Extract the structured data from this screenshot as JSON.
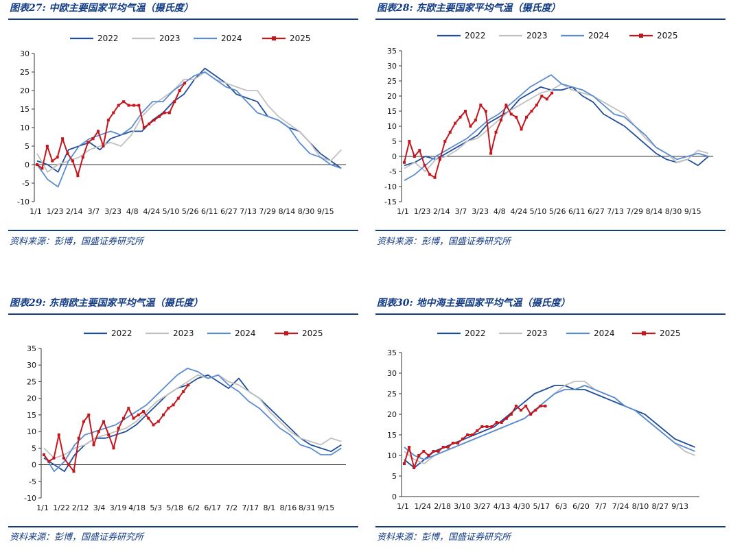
{
  "colors": {
    "s2022": "#1f4e9c",
    "s2023": "#c0c0c0",
    "s2024": "#5b8bd0",
    "s2025": "#c4161c",
    "brand": "#123b86"
  },
  "panels": [
    {
      "title": "图表27:  中欧主要国家平均气温（摄氏度）",
      "source": "资料来源：彭博，国盛证券研究所"
    },
    {
      "title": "图表28:  东欧主要国家平均气温（摄氏度）",
      "source": "资料来源：彭博，国盛证券研究所"
    },
    {
      "title": "图表29:  东南欧主要国家平均气温（摄氏度）",
      "source": "资料来源：彭博，国盛证券研究所"
    },
    {
      "title": "图表30:  地中海主要国家平均气温（摄氏度）",
      "source": "资料来源：彭博，国盛证券研究所"
    }
  ],
  "chart_data": [
    {
      "type": "line",
      "title": "中欧主要国家平均气温（摄氏度）",
      "ylim": [
        -10,
        30
      ],
      "yticks": [
        -10,
        -5,
        0,
        5,
        10,
        15,
        20,
        25,
        30
      ],
      "xticks": [
        "1/1",
        "1/23",
        "2/14",
        "3/7",
        "3/23",
        "4/8",
        "4/24",
        "5/10",
        "5/26",
        "6/11",
        "6/27",
        "7/13",
        "7/29",
        "8/14",
        "8/30",
        "9/15"
      ],
      "series": [
        {
          "name": "2022",
          "values": [
            1,
            0,
            -2,
            4,
            5,
            6,
            4,
            7,
            8,
            9,
            9,
            12,
            14,
            17,
            19,
            23,
            26,
            24,
            22,
            19,
            18,
            17,
            13,
            12,
            10,
            9,
            6,
            3,
            1,
            -1
          ]
        },
        {
          "name": "2023",
          "values": [
            3,
            -2,
            0,
            1,
            2,
            4,
            5,
            6,
            5,
            8,
            13,
            16,
            18,
            20,
            23,
            23,
            25,
            23,
            22,
            21,
            20,
            20,
            16,
            13,
            11,
            9,
            6,
            2,
            1,
            4
          ]
        },
        {
          "name": "2024",
          "values": [
            0,
            -4,
            -6,
            1,
            5,
            7,
            8,
            9,
            8,
            10,
            14,
            17,
            17,
            20,
            22,
            24,
            25,
            23,
            21,
            20,
            17,
            14,
            13,
            12,
            10,
            6,
            3,
            2,
            0,
            -1
          ]
        },
        {
          "name": "2025",
          "values": [
            0,
            -1,
            5,
            1,
            2,
            7,
            3,
            1,
            -3,
            2,
            6,
            7,
            9,
            5,
            12,
            14,
            16,
            17,
            16,
            16,
            16,
            10,
            11,
            12,
            13,
            14,
            14,
            17,
            20,
            22
          ]
        }
      ]
    },
    {
      "type": "line",
      "title": "东欧主要国家平均气温（摄氏度）",
      "ylim": [
        -15,
        35
      ],
      "yticks": [
        -15,
        -10,
        -5,
        0,
        5,
        10,
        15,
        20,
        25,
        30,
        35
      ],
      "xticks": [
        "1/1",
        "1/23",
        "2/14",
        "3/7",
        "3/23",
        "4/8",
        "4/24",
        "5/10",
        "5/26",
        "6/11",
        "6/27",
        "7/13",
        "7/29",
        "8/14",
        "8/30",
        "9/15"
      ],
      "series": [
        {
          "name": "2022",
          "values": [
            -3,
            -2,
            0,
            -1,
            1,
            3,
            5,
            7,
            11,
            13,
            15,
            19,
            21,
            23,
            22,
            22,
            23,
            20,
            18,
            14,
            12,
            10,
            7,
            4,
            1,
            -1,
            -2,
            -1,
            -3,
            0
          ]
        },
        {
          "name": "2023",
          "values": [
            -4,
            -2,
            -5,
            -1,
            0,
            2,
            5,
            6,
            9,
            12,
            15,
            17,
            19,
            21,
            22,
            24,
            22,
            21,
            20,
            18,
            16,
            14,
            10,
            6,
            3,
            1,
            -2,
            -1,
            2,
            1
          ]
        },
        {
          "name": "2024",
          "values": [
            -8,
            -6,
            -3,
            0,
            2,
            4,
            6,
            9,
            12,
            14,
            17,
            20,
            23,
            25,
            27,
            24,
            23,
            22,
            20,
            17,
            14,
            13,
            10,
            7,
            3,
            1,
            -1,
            0,
            1,
            0
          ]
        },
        {
          "name": "2025",
          "values": [
            -2,
            5,
            0,
            2,
            -3,
            -6,
            -7,
            -1,
            5,
            8,
            11,
            13,
            15,
            10,
            12,
            17,
            15,
            1,
            8,
            12,
            17,
            14,
            13,
            9,
            13,
            15,
            17,
            20,
            19,
            21
          ]
        }
      ]
    },
    {
      "type": "line",
      "title": "东南欧主要国家平均气温（摄氏度）",
      "ylim": [
        -10,
        35
      ],
      "yticks": [
        -10,
        -5,
        0,
        5,
        10,
        15,
        20,
        25,
        30,
        35
      ],
      "xticks": [
        "1/1",
        "1/22",
        "2/12",
        "3/4",
        "3/19",
        "4/18",
        "5/3",
        "5/18",
        "6/2",
        "6/17",
        "7/2",
        "7/17",
        "8/1",
        "8/16",
        "8/31",
        "9/15"
      ],
      "series": [
        {
          "name": "2022",
          "values": [
            2,
            0,
            -2,
            3,
            6,
            8,
            8,
            9,
            10,
            12,
            15,
            18,
            21,
            23,
            24,
            26,
            27,
            25,
            23,
            26,
            22,
            20,
            17,
            14,
            11,
            8,
            6,
            5,
            4,
            6
          ]
        },
        {
          "name": "2023",
          "values": [
            5,
            2,
            3,
            5,
            6,
            8,
            9,
            10,
            11,
            13,
            16,
            19,
            21,
            23,
            25,
            27,
            26,
            27,
            25,
            24,
            22,
            20,
            16,
            13,
            10,
            8,
            7,
            6,
            8,
            7
          ]
        },
        {
          "name": "2024",
          "values": [
            3,
            -2,
            1,
            6,
            9,
            10,
            11,
            12,
            14,
            16,
            18,
            21,
            24,
            27,
            29,
            28,
            26,
            27,
            24,
            22,
            19,
            17,
            14,
            11,
            9,
            6,
            5,
            3,
            3,
            5
          ]
        },
        {
          "name": "2025",
          "values": [
            3,
            1,
            2,
            9,
            2,
            0,
            -2,
            8,
            13,
            15,
            6,
            10,
            13,
            9,
            5,
            11,
            14,
            17,
            14,
            15,
            16,
            14,
            12,
            13,
            15,
            17,
            18,
            20,
            22,
            24
          ]
        }
      ]
    },
    {
      "type": "line",
      "title": "地中海主要国家平均气温（摄氏度）",
      "ylim": [
        0,
        35
      ],
      "yticks": [
        0,
        5,
        10,
        15,
        20,
        25,
        30,
        35
      ],
      "xticks": [
        "1/1",
        "1/24",
        "2/18",
        "3/10",
        "3/27",
        "4/13",
        "4/30",
        "5/17",
        "6/3",
        "6/20",
        "7/7",
        "7/24",
        "8/10",
        "8/27",
        "9/13"
      ],
      "series": [
        {
          "name": "2022",
          "values": [
            9,
            7,
            9,
            11,
            12,
            13,
            14,
            15,
            16,
            17,
            19,
            21,
            23,
            25,
            26,
            27,
            27,
            26,
            26,
            25,
            24,
            23,
            22,
            21,
            20,
            18,
            16,
            14,
            13,
            12
          ]
        },
        {
          "name": "2023",
          "values": [
            11,
            9,
            8,
            10,
            11,
            12,
            13,
            14,
            15,
            16,
            17,
            18,
            19,
            21,
            23,
            25,
            27,
            28,
            28,
            26,
            25,
            24,
            22,
            21,
            19,
            17,
            15,
            13,
            11,
            10
          ]
        },
        {
          "name": "2024",
          "values": [
            12,
            10,
            9,
            10,
            11,
            12,
            13,
            14,
            15,
            16,
            17,
            18,
            19,
            21,
            23,
            25,
            26,
            26,
            27,
            26,
            25,
            24,
            22,
            21,
            19,
            17,
            15,
            13,
            12,
            11
          ]
        },
        {
          "name": "2025",
          "values": [
            8,
            12,
            7,
            10,
            11,
            10,
            11,
            11,
            12,
            12,
            13,
            13,
            14,
            15,
            15,
            16,
            17,
            17,
            17,
            18,
            18,
            19,
            20,
            22,
            21,
            22,
            20,
            21,
            22,
            22
          ]
        }
      ]
    }
  ]
}
